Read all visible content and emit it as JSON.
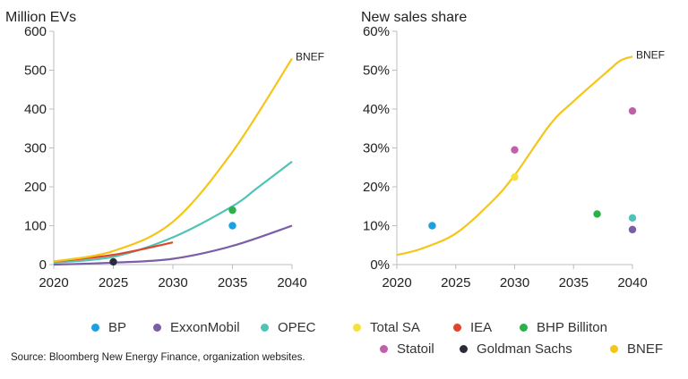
{
  "chart_data": [
    {
      "type": "line",
      "title": "Million EVs",
      "xlim": [
        2020,
        2040
      ],
      "ylim": [
        0,
        600
      ],
      "xticks": [
        2020,
        2025,
        2030,
        2035,
        2040
      ],
      "yticks": [
        0,
        100,
        200,
        300,
        400,
        500,
        600
      ],
      "ytick_labels": [
        "0",
        "100",
        "200",
        "300",
        "400",
        "500",
        "600"
      ],
      "grid": false,
      "series": [
        {
          "name": "ExxonMobil",
          "color": "#7b5ea7",
          "x": [
            2020,
            2025,
            2030,
            2035,
            2040
          ],
          "y": [
            0,
            5,
            15,
            48,
            100
          ]
        },
        {
          "name": "OPEC",
          "color": "#4fc3b5",
          "x": [
            2020,
            2025,
            2030,
            2035,
            2037,
            2040
          ],
          "y": [
            5,
            20,
            70,
            150,
            195,
            265
          ]
        },
        {
          "name": "IEA",
          "color": "#e0452b",
          "x": [
            2020,
            2025,
            2030
          ],
          "y": [
            8,
            25,
            57
          ]
        },
        {
          "name": "BNEF",
          "color": "#f5c518",
          "x": [
            2020,
            2025,
            2030,
            2035,
            2040
          ],
          "y": [
            8,
            35,
            110,
            290,
            530
          ]
        }
      ],
      "points": [
        {
          "name": "BP",
          "color": "#1ba1e2",
          "x": 2035,
          "y": 100
        },
        {
          "name": "BHP Billiton",
          "color": "#2bb04a",
          "x": 2035,
          "y": 140
        },
        {
          "name": "Goldman Sachs",
          "color": "#2b2b3a",
          "x": 2025,
          "y": 7
        }
      ],
      "annotation": "BNEF"
    },
    {
      "type": "line",
      "title": "New sales share",
      "xlim": [
        2020,
        2040
      ],
      "ylim": [
        0,
        60
      ],
      "xticks": [
        2020,
        2025,
        2030,
        2035,
        2040
      ],
      "yticks": [
        0,
        10,
        20,
        30,
        40,
        50,
        60
      ],
      "ytick_labels": [
        "0%",
        "10%",
        "20%",
        "30%",
        "40%",
        "50%",
        "60%"
      ],
      "grid": false,
      "series": [
        {
          "name": "BNEF",
          "color": "#f5c518",
          "x": [
            2020,
            2022,
            2025,
            2028,
            2030,
            2033,
            2035,
            2038,
            2039,
            2040
          ],
          "y": [
            2.5,
            4,
            8,
            16,
            23,
            36,
            42,
            50,
            52.5,
            53.5
          ]
        }
      ],
      "points": [
        {
          "name": "BP",
          "color": "#1ba1e2",
          "x": 2023,
          "y": 10
        },
        {
          "name": "Statoil",
          "color": "#c060a8",
          "x": 2030,
          "y": 29.5
        },
        {
          "name": "Total SA",
          "color": "#f5e13a",
          "x": 2030,
          "y": 22.5
        },
        {
          "name": "BHP Billiton",
          "color": "#2bb04a",
          "x": 2037,
          "y": 13
        },
        {
          "name": "OPEC",
          "color": "#4fc3b5",
          "x": 2040,
          "y": 12
        },
        {
          "name": "ExxonMobil",
          "color": "#7b5ea7",
          "x": 2040,
          "y": 9
        },
        {
          "name": "Statoil",
          "color": "#c060a8",
          "x": 2040,
          "y": 39.5
        }
      ],
      "annotation": "BNEF"
    }
  ],
  "legend": [
    {
      "label": "BP",
      "color": "#1ba1e2"
    },
    {
      "label": "ExxonMobil",
      "color": "#7b5ea7"
    },
    {
      "label": "OPEC",
      "color": "#4fc3b5"
    },
    {
      "label": "Total SA",
      "color": "#f5e13a"
    },
    {
      "label": "IEA",
      "color": "#e0452b"
    },
    {
      "label": "BHP Billiton",
      "color": "#2bb04a"
    },
    {
      "label": "Statoil",
      "color": "#c060a8"
    },
    {
      "label": "Goldman Sachs",
      "color": "#2b2b3a"
    },
    {
      "label": "BNEF",
      "color": "#f5c518"
    }
  ],
  "source": "Source: Bloomberg New Energy Finance, organization websites."
}
